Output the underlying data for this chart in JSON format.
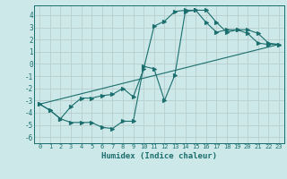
{
  "xlabel": "Humidex (Indice chaleur)",
  "bg_color": "#cde8e8",
  "line_color": "#1a6e6e",
  "grid_color": "#c8d8d8",
  "xlim": [
    -0.5,
    23.5
  ],
  "ylim": [
    -6.5,
    4.8
  ],
  "xticks": [
    0,
    1,
    2,
    3,
    4,
    5,
    6,
    7,
    8,
    9,
    10,
    11,
    12,
    13,
    14,
    15,
    16,
    17,
    18,
    19,
    20,
    21,
    22,
    23
  ],
  "yticks": [
    -6,
    -5,
    -4,
    -3,
    -2,
    -1,
    0,
    1,
    2,
    3,
    4
  ],
  "line1_x": [
    0,
    1,
    2,
    3,
    4,
    5,
    6,
    7,
    8,
    9,
    10,
    11,
    12,
    13,
    14,
    15,
    16,
    17,
    18,
    19,
    20,
    21,
    22,
    23
  ],
  "line1_y": [
    -3.3,
    -3.8,
    -4.5,
    -4.8,
    -4.8,
    -4.8,
    -5.2,
    -5.3,
    -4.7,
    -4.7,
    -0.2,
    -0.4,
    -3.0,
    -0.9,
    4.3,
    4.4,
    4.4,
    3.4,
    2.6,
    2.8,
    2.8,
    2.5,
    1.7,
    1.6
  ],
  "line2_x": [
    0,
    1,
    2,
    3,
    4,
    5,
    6,
    7,
    8,
    9,
    10,
    11,
    12,
    13,
    14,
    15,
    16,
    17,
    18,
    19,
    20,
    21,
    22,
    23
  ],
  "line2_y": [
    -3.3,
    -3.8,
    -4.5,
    -3.5,
    -2.8,
    -2.8,
    -2.6,
    -2.5,
    -2.0,
    -2.7,
    -0.4,
    3.1,
    3.5,
    4.3,
    4.4,
    4.4,
    3.4,
    2.6,
    2.8,
    2.8,
    2.5,
    1.7,
    1.6,
    1.6
  ],
  "line3_x": [
    0,
    23
  ],
  "line3_y": [
    -3.3,
    1.6
  ]
}
